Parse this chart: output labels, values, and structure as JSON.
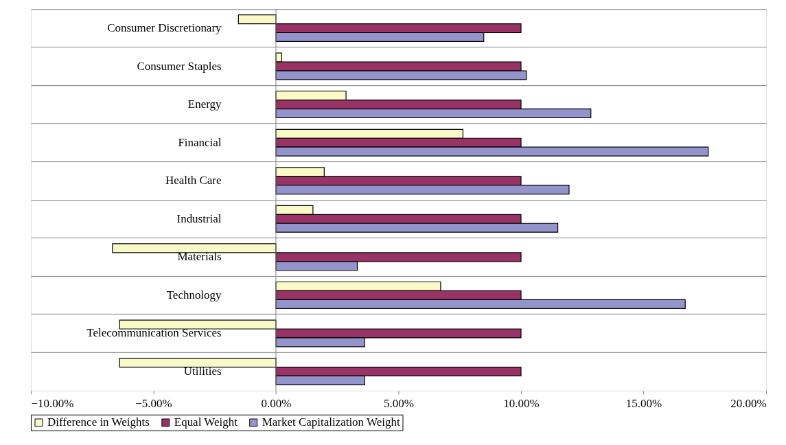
{
  "chart_data": {
    "type": "bar",
    "orientation": "horizontal",
    "categories": [
      "Consumer Discretionary",
      "Consumer Staples",
      "Energy",
      "Financial",
      "Health Care",
      "Industrial",
      "Materials",
      "Technology",
      "Telecommunication Services",
      "Utilities"
    ],
    "series": [
      {
        "name": "Difference in Weights",
        "color": "#fafac8",
        "values": [
          -1.53,
          0.23,
          2.86,
          7.63,
          1.97,
          1.51,
          -6.67,
          6.72,
          -6.38,
          -6.38
        ]
      },
      {
        "name": "Equal Weight",
        "color": "#993366",
        "values": [
          10,
          10,
          10,
          10,
          10,
          10,
          10,
          10,
          10,
          10
        ]
      },
      {
        "name": "Market Capitalization Weight",
        "color": "#9494cc",
        "values": [
          8.48,
          10.22,
          12.85,
          17.64,
          11.96,
          11.5,
          3.32,
          16.7,
          3.62,
          3.62
        ]
      }
    ],
    "xlim": [
      -10,
      20
    ],
    "xticks": [
      {
        "value": -10,
        "label": "−10.00%"
      },
      {
        "value": -5,
        "label": "−5.00%"
      },
      {
        "value": 0,
        "label": "0.00%"
      },
      {
        "value": 5,
        "label": "5.00%"
      },
      {
        "value": 10,
        "label": "10.00%"
      },
      {
        "value": 15,
        "label": "15.00%"
      },
      {
        "value": 20,
        "label": "20.00%"
      }
    ],
    "ref_lines": [
      {
        "axis": "x",
        "value": 0,
        "color": "#808080"
      }
    ],
    "grid": "y",
    "legend": "bottom"
  }
}
